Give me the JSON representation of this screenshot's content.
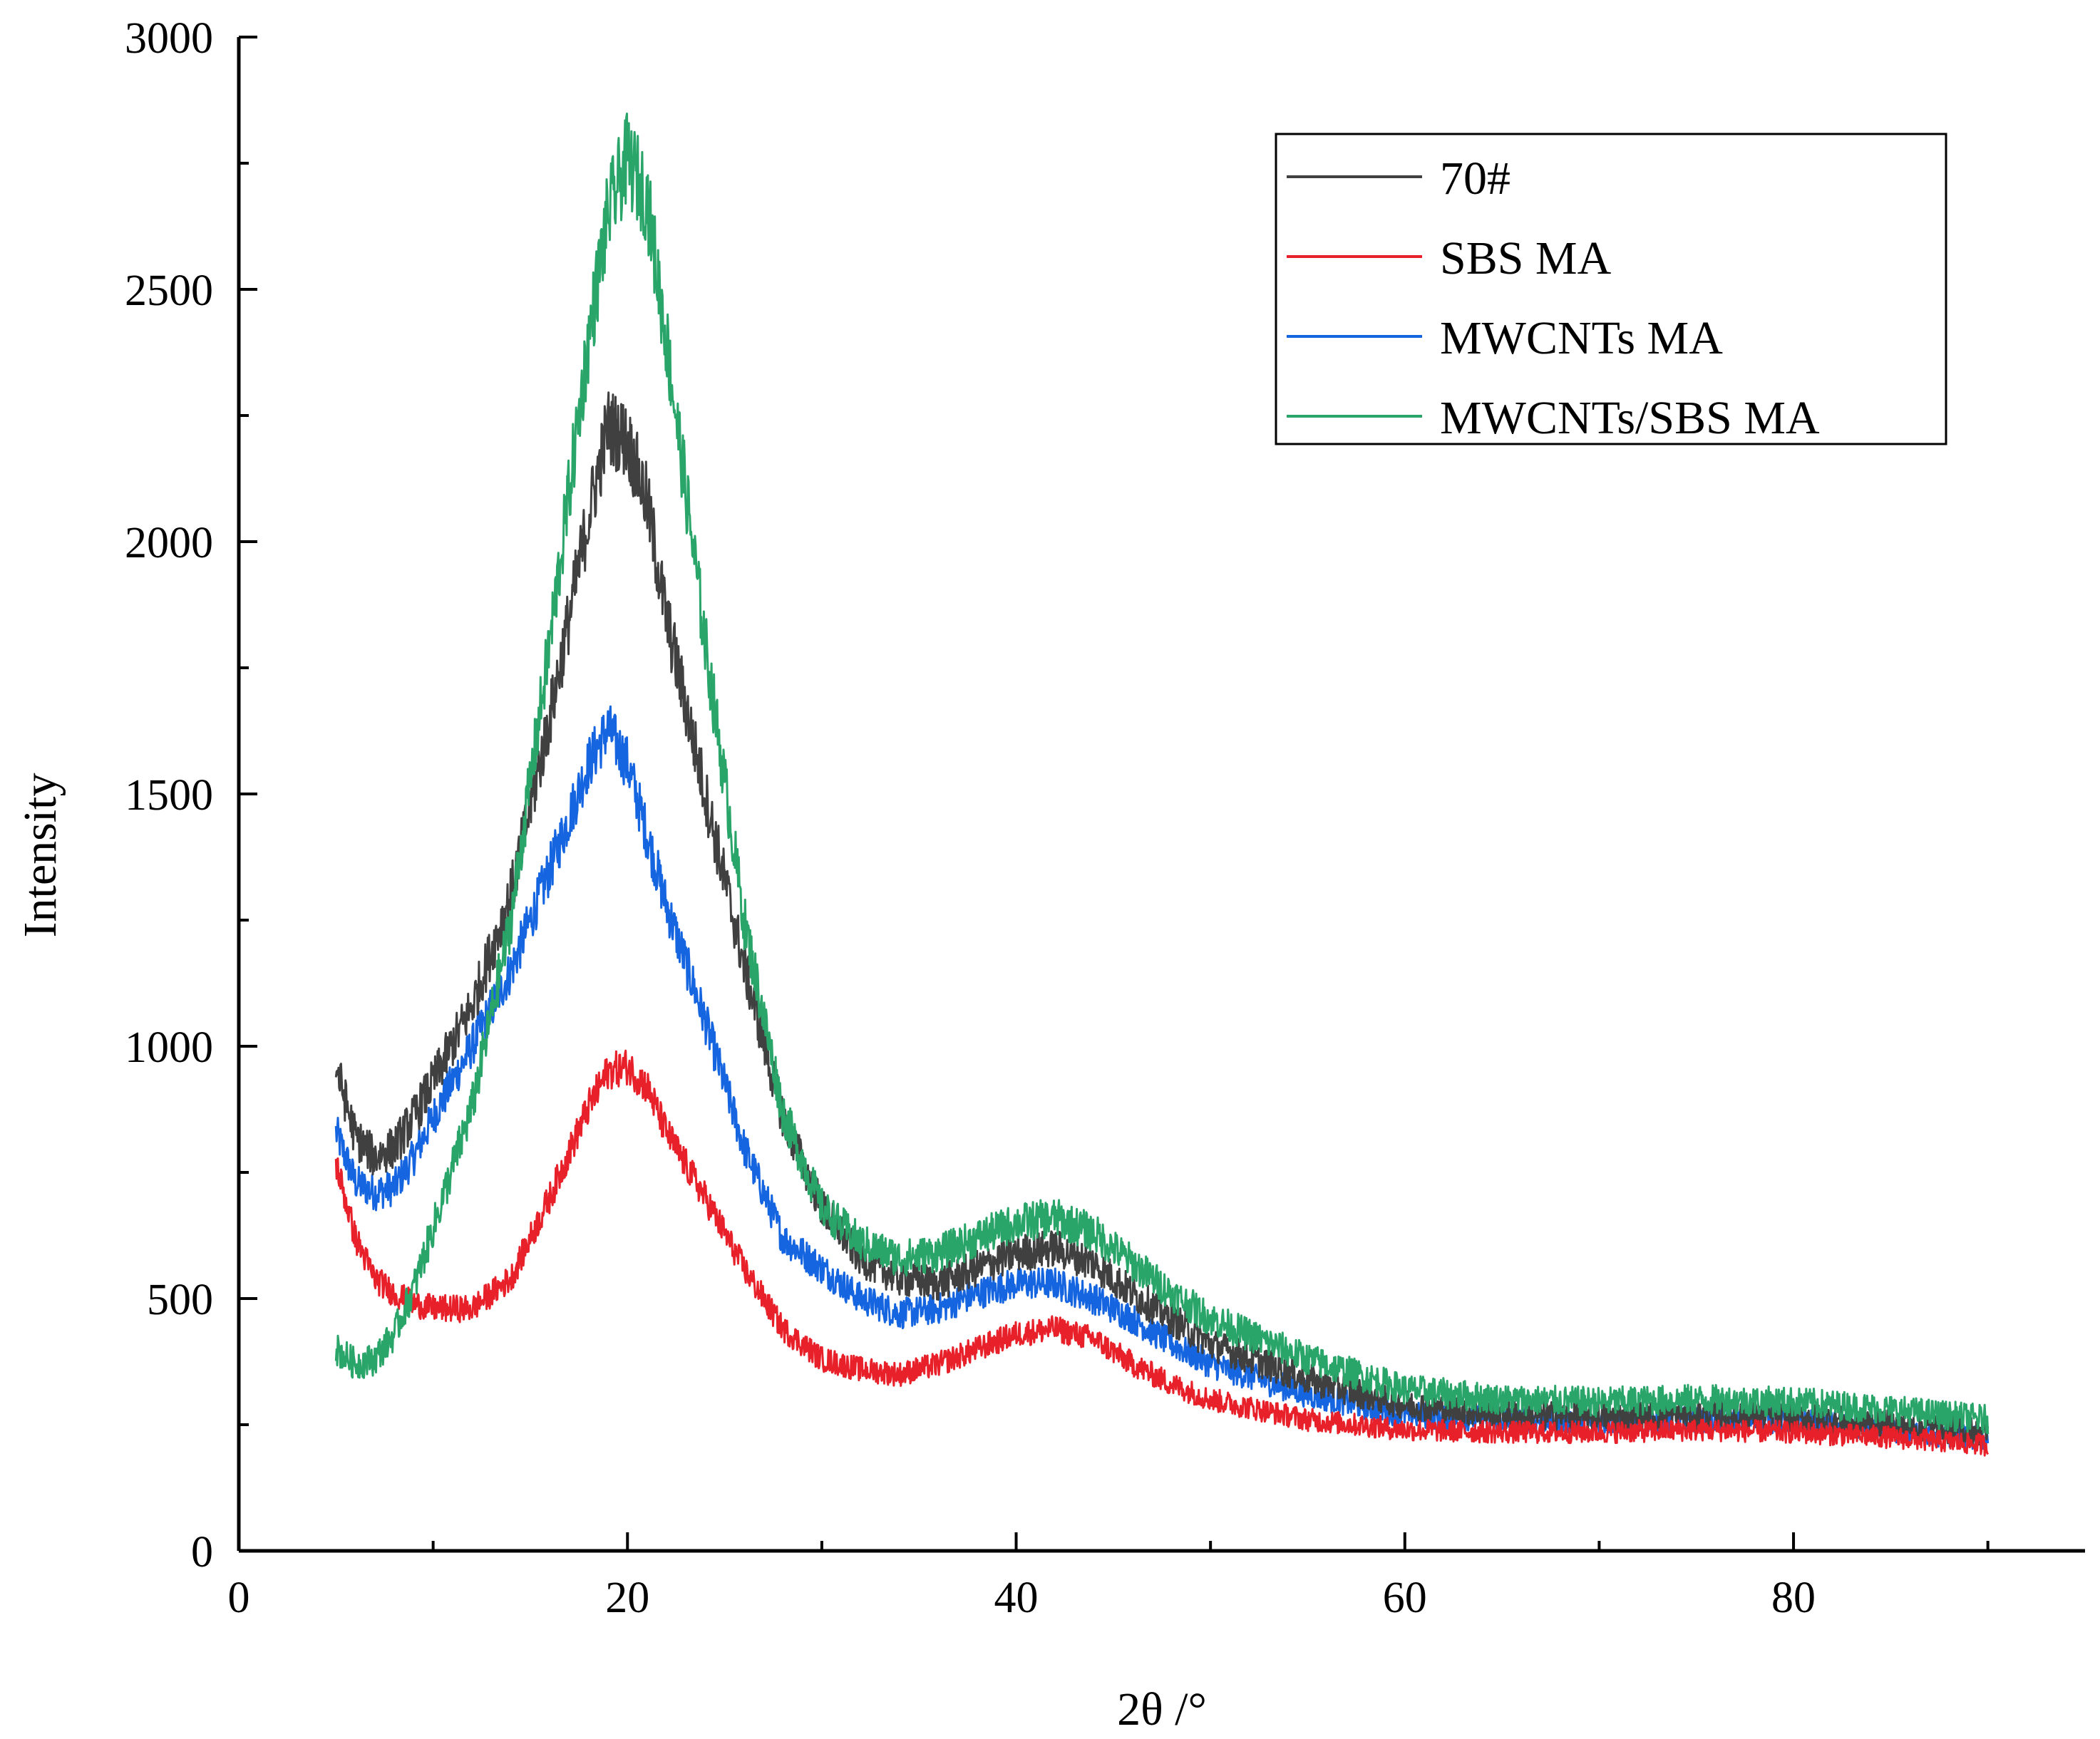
{
  "chart_data": {
    "type": "line",
    "title": "",
    "xlabel": "2θ /°",
    "ylabel": "Intensity",
    "xlim": [
      0,
      95
    ],
    "ylim": [
      0,
      3000
    ],
    "xticks": [
      0,
      20,
      40,
      60,
      80
    ],
    "yticks": [
      0,
      500,
      1000,
      1500,
      2000,
      2500,
      3000
    ],
    "grid": false,
    "legend_position": "top-right",
    "x": [
      5,
      6,
      7,
      8,
      9,
      10,
      12,
      14,
      16,
      18,
      19,
      20,
      21,
      22,
      24,
      26,
      28,
      30,
      32,
      34,
      36,
      38,
      40,
      42,
      44,
      46,
      48,
      50,
      55,
      60,
      65,
      70,
      75,
      80,
      85,
      90
    ],
    "series": [
      {
        "name": "70#",
        "color": "#404040",
        "noise": 45,
        "values": [
          960,
          820,
          780,
          800,
          860,
          930,
          1080,
          1300,
          1650,
          2050,
          2230,
          2200,
          2080,
          1850,
          1500,
          1160,
          860,
          680,
          580,
          540,
          530,
          560,
          590,
          600,
          570,
          510,
          460,
          410,
          340,
          290,
          270,
          265,
          270,
          265,
          250,
          235
        ]
      },
      {
        "name": "SBS MA",
        "color": "#e8202a",
        "noise": 35,
        "values": [
          770,
          620,
          540,
          510,
          490,
          480,
          480,
          540,
          700,
          880,
          950,
          960,
          920,
          830,
          700,
          560,
          440,
          380,
          360,
          350,
          370,
          400,
          430,
          440,
          420,
          370,
          330,
          300,
          260,
          240,
          235,
          235,
          240,
          235,
          225,
          210
        ]
      },
      {
        "name": "MWCNTs MA",
        "color": "#1565e0",
        "noise": 40,
        "values": [
          830,
          730,
          710,
          720,
          780,
          860,
          1000,
          1150,
          1350,
          1560,
          1630,
          1560,
          1420,
          1280,
          1050,
          800,
          620,
          560,
          500,
          470,
          480,
          510,
          530,
          530,
          500,
          460,
          410,
          370,
          310,
          270,
          260,
          255,
          260,
          258,
          240,
          220
        ]
      },
      {
        "name": "MWCNTs/SBS MA",
        "color": "#2aa56a",
        "noise": 45,
        "values": [
          400,
          370,
          380,
          430,
          520,
          640,
          880,
          1250,
          1800,
          2400,
          2650,
          2760,
          2680,
          2400,
          1800,
          1250,
          870,
          680,
          610,
          580,
          590,
          620,
          650,
          660,
          630,
          570,
          510,
          460,
          380,
          320,
          300,
          295,
          300,
          295,
          280,
          260
        ]
      }
    ]
  }
}
